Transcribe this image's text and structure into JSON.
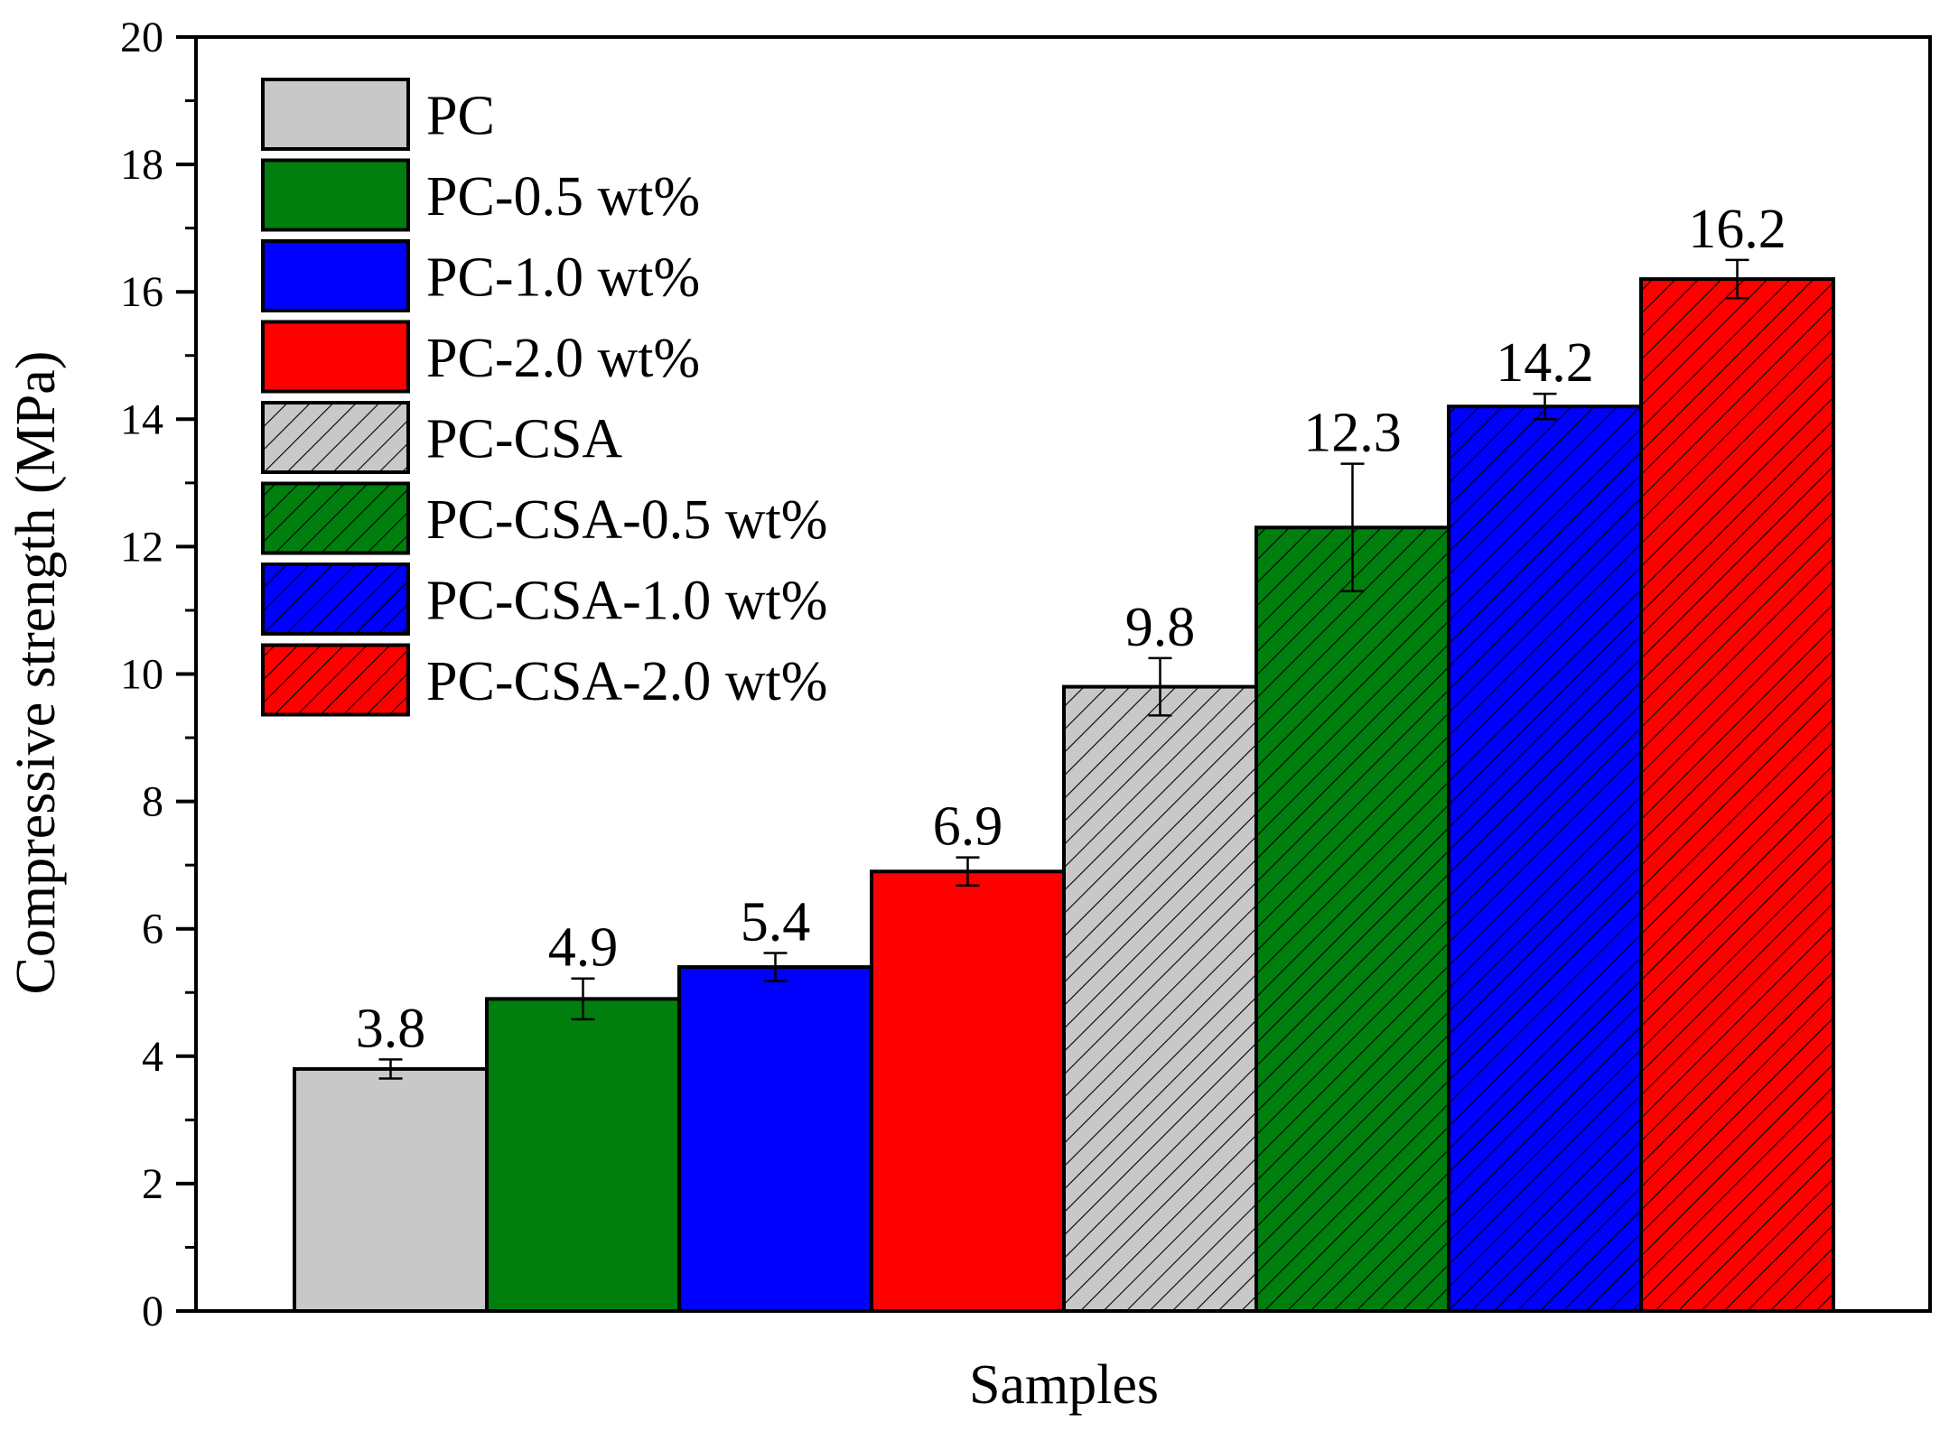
{
  "chart_data": {
    "type": "bar",
    "title": "",
    "xlabel": "Samples",
    "ylabel": "Compressive strength (MPa)",
    "ylim": [
      0,
      20
    ],
    "yticks": [
      0,
      2,
      4,
      6,
      8,
      10,
      12,
      14,
      16,
      18,
      20
    ],
    "ytick_labels": [
      "0",
      "2",
      "4",
      "6",
      "8",
      "10",
      "12",
      "14",
      "16",
      "18",
      "20"
    ],
    "legend_position": "top-left",
    "categories": [
      "PC",
      "PC-0.5 wt%",
      "PC-1.0 wt%",
      "PC-2.0 wt%",
      "PC-CSA",
      "PC-CSA-0.5 wt%",
      "PC-CSA-1.0 wt%",
      "PC-CSA-2.0 wt%"
    ],
    "values": [
      3.8,
      4.9,
      5.4,
      6.9,
      9.8,
      12.3,
      14.2,
      16.2
    ],
    "value_labels": [
      "3.8",
      "4.9",
      "5.4",
      "6.9",
      "9.8",
      "12.3",
      "14.2",
      "16.2"
    ],
    "errors": [
      0.15,
      0.32,
      0.22,
      0.22,
      0.45,
      1.0,
      0.2,
      0.3
    ],
    "colors": [
      "#c8c8c8",
      "#007f0e",
      "#0000ff",
      "#ff0000",
      "#c8c8c8",
      "#007f0e",
      "#0000ff",
      "#ff0000"
    ],
    "hatched": [
      false,
      false,
      false,
      false,
      true,
      true,
      true,
      true
    ]
  }
}
